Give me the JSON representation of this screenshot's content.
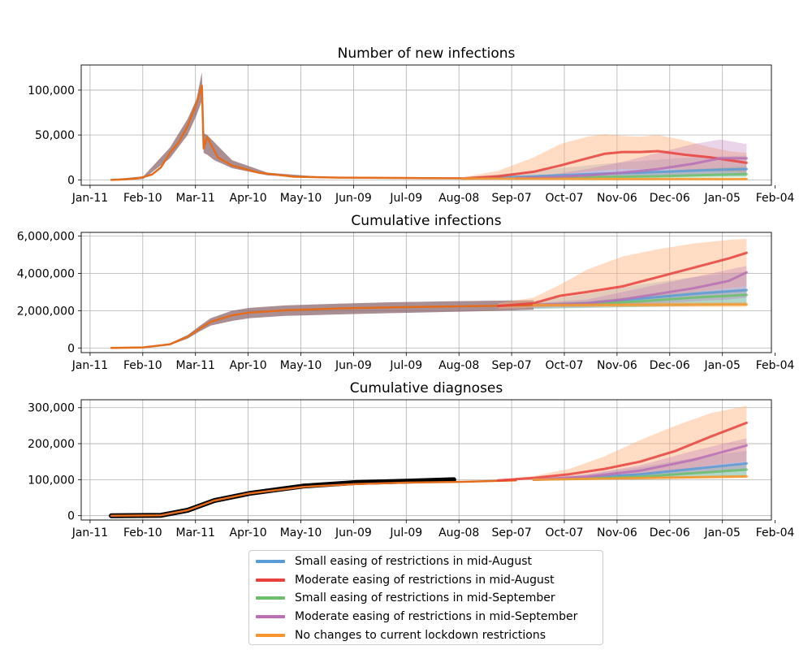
{
  "colors": {
    "small_aug": "#5b9bd5",
    "moderate_aug": "#e8413e",
    "small_sep": "#6cbf6c",
    "moderate_sep": "#b970b5",
    "no_change": "#f7962e",
    "historical": "#e36c1d",
    "hist_band": "#8c6a70",
    "data": "#000000"
  },
  "legend": {
    "items": [
      {
        "label": "Small easing of restrictions in mid-August",
        "color": "#5b9bd5"
      },
      {
        "label": "Moderate easing of restrictions in mid-August",
        "color": "#e8413e"
      },
      {
        "label": "Small easing of restrictions in mid-September",
        "color": "#6cbf6c"
      },
      {
        "label": "Moderate easing of restrictions in mid-September",
        "color": "#b970b5"
      },
      {
        "label": "No changes to current lockdown restrictions",
        "color": "#f7962e"
      }
    ]
  },
  "chart_data": [
    {
      "type": "line",
      "title": "Number of new infections",
      "x_ticks": [
        "Jan-11",
        "Feb-10",
        "Mar-11",
        "Apr-10",
        "May-10",
        "Jun-09",
        "Jul-09",
        "Aug-08",
        "Sep-07",
        "Oct-07",
        "Nov-06",
        "Dec-06",
        "Jan-05",
        "Feb-04"
      ],
      "x_day_range": [
        -5,
        384
      ],
      "y_ticks": [
        0,
        50000,
        100000
      ],
      "y_tick_labels": [
        "0",
        "50,000",
        "100,000"
      ],
      "ylim": [
        -6000,
        128000
      ],
      "grid": true,
      "historical": {
        "x": [
          12,
          20,
          28,
          35,
          40,
          45,
          50,
          55,
          60,
          63,
          64,
          66,
          68,
          72,
          80,
          95,
          115,
          140,
          165,
          190,
          210
        ],
        "y": [
          0,
          500,
          2000,
          6000,
          14000,
          30000,
          42000,
          60000,
          85000,
          105000,
          35000,
          48000,
          40000,
          25000,
          16000,
          8000,
          3500,
          2500,
          2200,
          2000,
          1800
        ]
      },
      "historical_band": {
        "x": [
          12,
          30,
          45,
          55,
          60,
          63,
          64,
          66,
          70,
          80,
          100,
          130,
          170,
          210
        ],
        "upper": [
          500,
          4000,
          36000,
          68000,
          90000,
          120000,
          52000,
          50000,
          42000,
          22000,
          8000,
          3500,
          2800,
          2500
        ],
        "lower": [
          0,
          1000,
          24000,
          50000,
          72000,
          88000,
          30000,
          28000,
          22000,
          13000,
          5000,
          2000,
          1500,
          1000
        ]
      },
      "series": [
        {
          "name": "Small easing of restrictions in mid-August",
          "x": [
            210,
            230,
            250,
            270,
            290,
            310,
            330,
            350,
            370
          ],
          "y": [
            1500,
            2500,
            4000,
            5500,
            7000,
            8000,
            9500,
            11000,
            12000
          ],
          "upper": [
            3000,
            6000,
            10000,
            14000,
            18000,
            21000,
            24000,
            26000,
            27000
          ],
          "lower": [
            1000,
            1500,
            2000,
            2500,
            3000,
            3500,
            4000,
            4000,
            4000
          ]
        },
        {
          "name": "Moderate easing of restrictions in mid-August",
          "x": [
            210,
            230,
            250,
            265,
            280,
            290,
            300,
            310,
            320,
            335,
            350,
            360,
            370
          ],
          "y": [
            1500,
            4000,
            9000,
            16000,
            24000,
            29000,
            31000,
            31000,
            32000,
            28000,
            25000,
            22000,
            19000
          ],
          "upper": [
            3000,
            10000,
            25000,
            40000,
            48000,
            51000,
            49000,
            48000,
            50000,
            44000,
            36000,
            32000,
            30000
          ],
          "lower": [
            800,
            2000,
            4000,
            6000,
            9000,
            11000,
            12000,
            12000,
            13000,
            11000,
            10000,
            9000,
            8000
          ]
        },
        {
          "name": "Small easing of restrictions in mid-September",
          "x": [
            240,
            260,
            280,
            300,
            320,
            340,
            360,
            370
          ],
          "y": [
            2000,
            2500,
            3000,
            3500,
            4000,
            5000,
            6000,
            6500
          ],
          "upper": [
            3000,
            4000,
            6000,
            8000,
            10000,
            12000,
            14000,
            15000
          ],
          "lower": [
            1000,
            1000,
            1500,
            1500,
            2000,
            2000,
            2500,
            2500
          ]
        },
        {
          "name": "Moderate easing of restrictions in mid-September",
          "x": [
            240,
            260,
            280,
            300,
            320,
            340,
            355,
            370
          ],
          "y": [
            2000,
            3000,
            5000,
            8000,
            12000,
            18000,
            24000,
            24000
          ],
          "upper": [
            3000,
            6000,
            12000,
            20000,
            30000,
            40000,
            45000,
            40000
          ],
          "lower": [
            1000,
            1500,
            2000,
            3000,
            4000,
            5000,
            6000,
            6000
          ]
        },
        {
          "name": "No changes to current lockdown restrictions",
          "x": [
            210,
            250,
            290,
            330,
            370
          ],
          "y": [
            1500,
            1200,
            1000,
            900,
            800
          ],
          "upper": [
            2500,
            2200,
            2000,
            1800,
            1600
          ],
          "lower": [
            800,
            700,
            600,
            500,
            400
          ]
        }
      ]
    },
    {
      "type": "line",
      "title": "Cumulative infections",
      "x_ticks": [
        "Jan-11",
        "Feb-10",
        "Mar-11",
        "Apr-10",
        "May-10",
        "Jun-09",
        "Jul-09",
        "Aug-08",
        "Sep-07",
        "Oct-07",
        "Nov-06",
        "Dec-06",
        "Jan-05",
        "Feb-04"
      ],
      "x_day_range": [
        -5,
        384
      ],
      "y_ticks": [
        0,
        2000000,
        4000000,
        6000000
      ],
      "y_tick_labels": [
        "0",
        "2,000,000",
        "4,000,000",
        "6,000,000"
      ],
      "ylim": [
        -250000,
        6200000
      ],
      "grid": true,
      "historical": {
        "x": [
          12,
          30,
          45,
          55,
          62,
          68,
          80,
          90,
          110,
          140,
          170,
          200,
          230,
          250
        ],
        "y": [
          0,
          30000,
          200000,
          600000,
          1050000,
          1400000,
          1750000,
          1900000,
          2020000,
          2120000,
          2180000,
          2220000,
          2260000,
          2300000
        ]
      },
      "historical_band": {
        "x": [
          12,
          30,
          45,
          55,
          62,
          68,
          80,
          90,
          110,
          140,
          170,
          200,
          230,
          250
        ],
        "upper": [
          0,
          40000,
          250000,
          700000,
          1200000,
          1600000,
          2000000,
          2150000,
          2280000,
          2380000,
          2450000,
          2500000,
          2540000,
          2560000
        ],
        "lower": [
          0,
          20000,
          150000,
          500000,
          900000,
          1200000,
          1450000,
          1600000,
          1720000,
          1800000,
          1870000,
          1930000,
          1990000,
          2050000
        ]
      },
      "series": [
        {
          "name": "Small easing of restrictions in mid-August",
          "x": [
            250,
            280,
            310,
            340,
            370
          ],
          "y": [
            2300000,
            2400000,
            2650000,
            2900000,
            3100000
          ],
          "upper": [
            2500000,
            2900000,
            3400000,
            3800000,
            4100000
          ],
          "lower": [
            2100000,
            2150000,
            2200000,
            2250000,
            2300000
          ]
        },
        {
          "name": "Moderate easing of restrictions in mid-August",
          "x": [
            230,
            250,
            265,
            280,
            300,
            320,
            340,
            360,
            370
          ],
          "y": [
            2250000,
            2400000,
            2800000,
            3000000,
            3300000,
            3800000,
            4300000,
            4800000,
            5100000
          ],
          "upper": [
            2400000,
            2700000,
            3400000,
            4200000,
            4900000,
            5300000,
            5600000,
            5800000,
            5850000
          ],
          "lower": [
            2100000,
            2150000,
            2300000,
            2400000,
            2600000,
            2800000,
            3000000,
            3200000,
            3300000
          ]
        },
        {
          "name": "Small easing of restrictions in mid-September",
          "x": [
            250,
            280,
            310,
            340,
            370
          ],
          "y": [
            2300000,
            2350000,
            2500000,
            2700000,
            2850000
          ],
          "upper": [
            2400000,
            2500000,
            2800000,
            3000000,
            3200000
          ],
          "lower": [
            2100000,
            2150000,
            2200000,
            2250000,
            2300000
          ]
        },
        {
          "name": "Moderate easing of restrictions in mid-September",
          "x": [
            250,
            280,
            300,
            320,
            340,
            360,
            370
          ],
          "y": [
            2300000,
            2400000,
            2600000,
            2900000,
            3200000,
            3600000,
            4050000
          ],
          "upper": [
            2400000,
            2600000,
            3000000,
            3400000,
            3800000,
            4200000,
            4400000
          ],
          "lower": [
            2150000,
            2200000,
            2300000,
            2400000,
            2500000,
            2600000,
            2700000
          ]
        },
        {
          "name": "No changes to current lockdown restrictions",
          "x": [
            250,
            290,
            330,
            370
          ],
          "y": [
            2300000,
            2310000,
            2320000,
            2330000
          ],
          "upper": [
            2400000,
            2420000,
            2440000,
            2450000
          ],
          "lower": [
            2200000,
            2200000,
            2200000,
            2200000
          ]
        }
      ]
    },
    {
      "type": "line",
      "title": "Cumulative diagnoses",
      "x_ticks": [
        "Jan-11",
        "Feb-10",
        "Mar-11",
        "Apr-10",
        "May-10",
        "Jun-09",
        "Jul-09",
        "Aug-08",
        "Sep-07",
        "Oct-07",
        "Nov-06",
        "Dec-06",
        "Jan-05",
        "Feb-04"
      ],
      "x_day_range": [
        -5,
        384
      ],
      "y_ticks": [
        0,
        100000,
        200000,
        300000
      ],
      "y_tick_labels": [
        "0",
        "100,000",
        "200,000",
        "300,000"
      ],
      "ylim": [
        -12000,
        322000
      ],
      "grid": true,
      "historical": {
        "x": [
          12,
          40,
          55,
          70,
          90,
          120,
          150,
          180,
          210,
          240
        ],
        "y": [
          0,
          1000,
          15000,
          42000,
          62000,
          80000,
          88000,
          92000,
          94000,
          98000
        ]
      },
      "observed": {
        "x": [
          12,
          40,
          55,
          70,
          90,
          120,
          150,
          180,
          205
        ],
        "y": [
          0,
          1000,
          15000,
          42000,
          62000,
          82000,
          92000,
          96000,
          100000
        ]
      },
      "series": [
        {
          "name": "Small easing of restrictions in mid-August",
          "x": [
            250,
            280,
            310,
            340,
            370
          ],
          "y": [
            100000,
            105000,
            115000,
            130000,
            145000
          ],
          "upper": [
            102000,
            115000,
            135000,
            160000,
            180000
          ],
          "lower": [
            98000,
            99000,
            102000,
            105000,
            108000
          ]
        },
        {
          "name": "Moderate easing of restrictions in mid-August",
          "x": [
            230,
            250,
            270,
            290,
            310,
            330,
            350,
            370
          ],
          "y": [
            98000,
            105000,
            115000,
            130000,
            150000,
            180000,
            220000,
            258000
          ],
          "upper": [
            100000,
            110000,
            130000,
            165000,
            210000,
            250000,
            285000,
            305000
          ],
          "lower": [
            96000,
            100000,
            103000,
            108000,
            115000,
            125000,
            140000,
            150000
          ]
        },
        {
          "name": "Small easing of restrictions in mid-September",
          "x": [
            250,
            280,
            310,
            340,
            370
          ],
          "y": [
            100000,
            103000,
            108000,
            118000,
            128000
          ],
          "upper": [
            101000,
            108000,
            118000,
            130000,
            145000
          ],
          "lower": [
            99000,
            100000,
            101000,
            104000,
            108000
          ]
        },
        {
          "name": "Moderate easing of restrictions in mid-September",
          "x": [
            250,
            280,
            310,
            340,
            370
          ],
          "y": [
            100000,
            108000,
            125000,
            155000,
            195000
          ],
          "upper": [
            102000,
            115000,
            140000,
            180000,
            215000
          ],
          "lower": [
            98000,
            100000,
            105000,
            115000,
            125000
          ]
        },
        {
          "name": "No changes to current lockdown restrictions",
          "x": [
            250,
            290,
            330,
            370
          ],
          "y": [
            100000,
            103000,
            106000,
            109000
          ],
          "upper": [
            101000,
            105000,
            109000,
            113000
          ],
          "lower": [
            99000,
            101000,
            103000,
            105000
          ]
        }
      ]
    }
  ]
}
